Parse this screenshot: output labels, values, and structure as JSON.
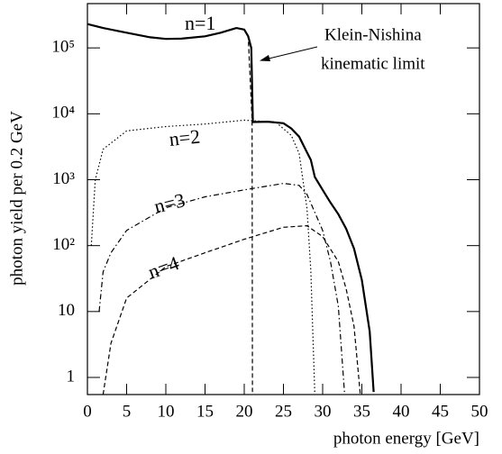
{
  "chart_data": {
    "type": "line",
    "x_label": "photon energy [GeV]",
    "y_label": "photon yield per 0.2 GeV",
    "annotations": [
      "Klein-Nishina",
      "kinematic limit"
    ],
    "xlim": [
      0,
      50
    ],
    "xticks": [
      0,
      5,
      10,
      15,
      20,
      25,
      30,
      35,
      40,
      45,
      50
    ],
    "ylim": [
      0.55,
      470000
    ],
    "ylog": true,
    "yticks": [
      1,
      10,
      {
        "value": 100,
        "label": "10²"
      },
      {
        "value": 1000,
        "label": "10³"
      },
      {
        "value": 10000,
        "label": "10⁴"
      },
      {
        "value": 100000,
        "label": "10⁵"
      }
    ],
    "series": [
      {
        "name": "n=1",
        "color": "#000000",
        "line_style": "dashed",
        "x": [
          0,
          2,
          5,
          8,
          10,
          12,
          15,
          17,
          19,
          20,
          20.5,
          21,
          21.05
        ],
        "values": [
          230000,
          200000,
          170000,
          145000,
          137000,
          138000,
          150000,
          170000,
          200000,
          190000,
          150000,
          8000,
          0.6
        ]
      },
      {
        "color": "#000000",
        "line_style": "solid",
        "x": [
          0,
          2,
          5,
          8,
          10,
          12,
          15,
          17,
          19,
          20,
          20.5,
          20.9,
          21.1,
          23,
          25,
          26,
          27,
          28,
          28.5,
          29,
          30,
          31,
          32,
          33,
          34,
          35,
          36,
          36.5
        ],
        "values": [
          230000,
          200000,
          170000,
          145000,
          137000,
          138000,
          150000,
          170000,
          200000,
          190000,
          150000,
          100000,
          7500,
          7600,
          7200,
          6000,
          4500,
          2600,
          2000,
          1100,
          700,
          450,
          300,
          180,
          90,
          30,
          5,
          0.6
        ]
      },
      {
        "name": "n=2",
        "color": "#000000",
        "line_style": "dotted",
        "x": [
          0.5,
          1,
          2,
          5,
          10,
          15,
          20,
          24,
          26,
          27,
          28,
          28.5,
          29
        ],
        "values": [
          100,
          1000,
          2900,
          5500,
          6400,
          7000,
          8000,
          7500,
          4700,
          2500,
          370,
          41,
          0.55
        ]
      },
      {
        "name": "n=3",
        "color": "#000000",
        "line_style": "dashdot",
        "x": [
          1.5,
          2,
          3,
          5,
          10,
          15,
          20,
          25,
          27,
          28,
          29,
          30,
          31,
          32,
          32.8
        ],
        "values": [
          10,
          40,
          78,
          170,
          375,
          550,
          700,
          880,
          820,
          600,
          320,
          170,
          57,
          12,
          0.55
        ]
      },
      {
        "name": "n=4",
        "color": "#000000",
        "line_style": "dashed",
        "x": [
          2,
          3,
          5,
          10,
          15,
          20,
          25,
          28,
          30,
          32,
          33,
          34,
          34.8
        ],
        "values": [
          0.55,
          3.3,
          16,
          48,
          78,
          125,
          190,
          200,
          137,
          57,
          22,
          6,
          0.55
        ]
      }
    ]
  }
}
